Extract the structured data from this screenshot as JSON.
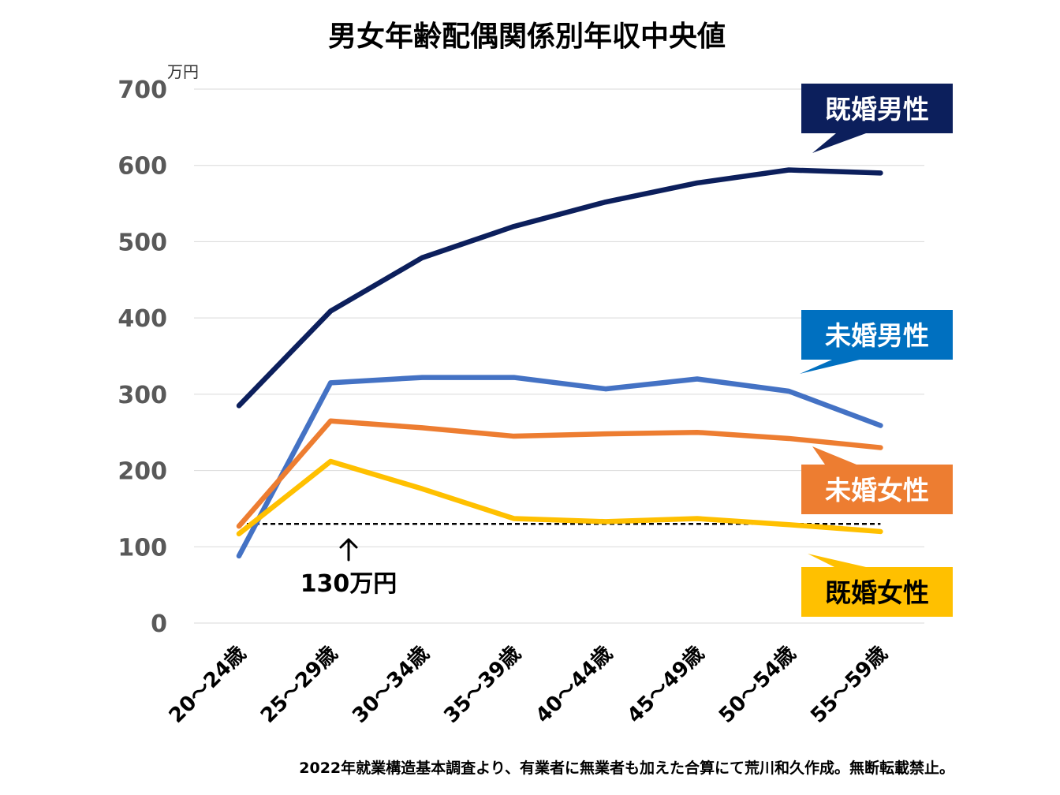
{
  "chart_data": {
    "type": "line",
    "title": "男女年齢配偶関係別年収中央値",
    "unit_label": "万円",
    "ylim": [
      0,
      700
    ],
    "yticks": [
      "0",
      "100",
      "200",
      "300",
      "400",
      "500",
      "600",
      "700"
    ],
    "grid": true,
    "categories": [
      "20～24歳",
      "25～29歳",
      "30～34歳",
      "35～39歳",
      "40～44歳",
      "45～49歳",
      "50～54歳",
      "55～59歳"
    ],
    "series": [
      {
        "name": "既婚男性",
        "color": "#0c1f5c",
        "values": [
          285,
          409,
          479,
          520,
          552,
          577,
          594,
          590
        ]
      },
      {
        "name": "未婚男性",
        "color": "#4472c4",
        "values": [
          88,
          315,
          322,
          322,
          307,
          320,
          304,
          259
        ]
      },
      {
        "name": "未婚女性",
        "color": "#ed7d31",
        "values": [
          127,
          265,
          256,
          245,
          248,
          250,
          242,
          230
        ]
      },
      {
        "name": "既婚女性",
        "color": "#ffc000",
        "values": [
          117,
          212,
          176,
          137,
          133,
          137,
          129,
          120
        ]
      }
    ],
    "reference_line": {
      "value": 130,
      "label": "130万円"
    },
    "footnote": "2022年就業構造基本調査より、有業者に無業者も加えた合算にて荒川和久作成。無断転載禁止。"
  },
  "colors": {
    "grid": "#d9d9d9",
    "axis_text": "#595959",
    "legend_married_male": "#0c1f5c",
    "legend_single_male": "#0070c0",
    "legend_single_female": "#ed7d31",
    "legend_married_female": "#ffc000"
  }
}
